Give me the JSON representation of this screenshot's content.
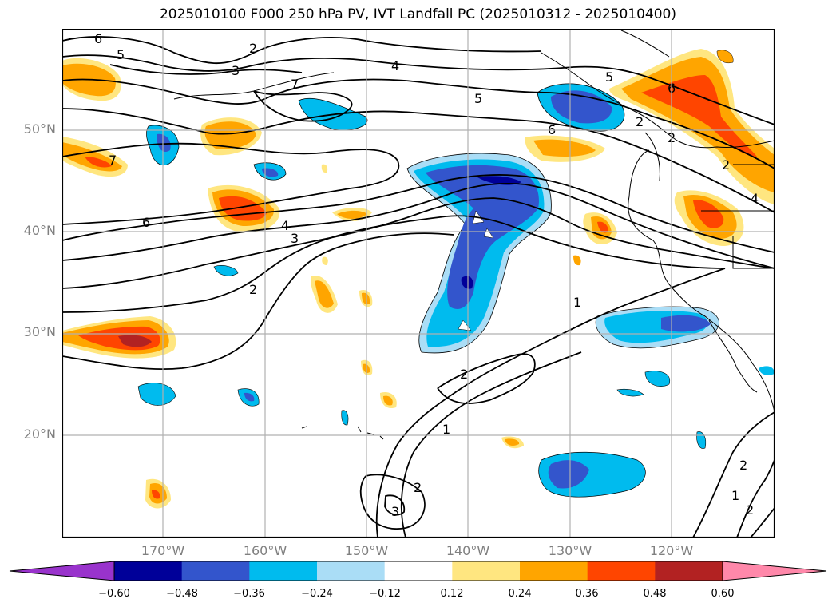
{
  "title": "2025010100 F000 250 hPa PV, IVT Landfall PC (2025010312 - 2025010400)",
  "lat_labels": [
    "50°N",
    "40°N",
    "30°N",
    "20°N"
  ],
  "lon_labels": [
    "170°W",
    "160°W",
    "150°W",
    "140°W",
    "130°W",
    "120°W"
  ],
  "colorbar": {
    "ticks": [
      "−0.60",
      "−0.48",
      "−0.36",
      "−0.24",
      "−0.12",
      "0.12",
      "0.24",
      "0.36",
      "0.48",
      "0.60"
    ],
    "colors": [
      "#9933cc",
      "#000099",
      "#3355cc",
      "#00bbee",
      "#aaddf6",
      "#ffffff",
      "#ffe680",
      "#ffa500",
      "#ff4500",
      "#b22222",
      "#ff88aa"
    ],
    "extend": "both"
  },
  "contour_labels": [
    "6",
    "5",
    "2",
    "3",
    "4",
    "7",
    "5",
    "6",
    "2",
    "7",
    "6",
    "4",
    "3",
    "2",
    "1",
    "2",
    "1",
    "2",
    "3",
    "5",
    "6",
    "2",
    "4",
    "2",
    "2",
    "1",
    "2"
  ],
  "colors": {
    "negative_strong": "#3355cc",
    "negative": "#00bbee",
    "negative_weak": "#aaddf6",
    "positive_weak": "#ffe680",
    "positive": "#ffa500",
    "positive_strong": "#ff4500",
    "positive_max": "#b22222",
    "darkest": "#000099"
  }
}
